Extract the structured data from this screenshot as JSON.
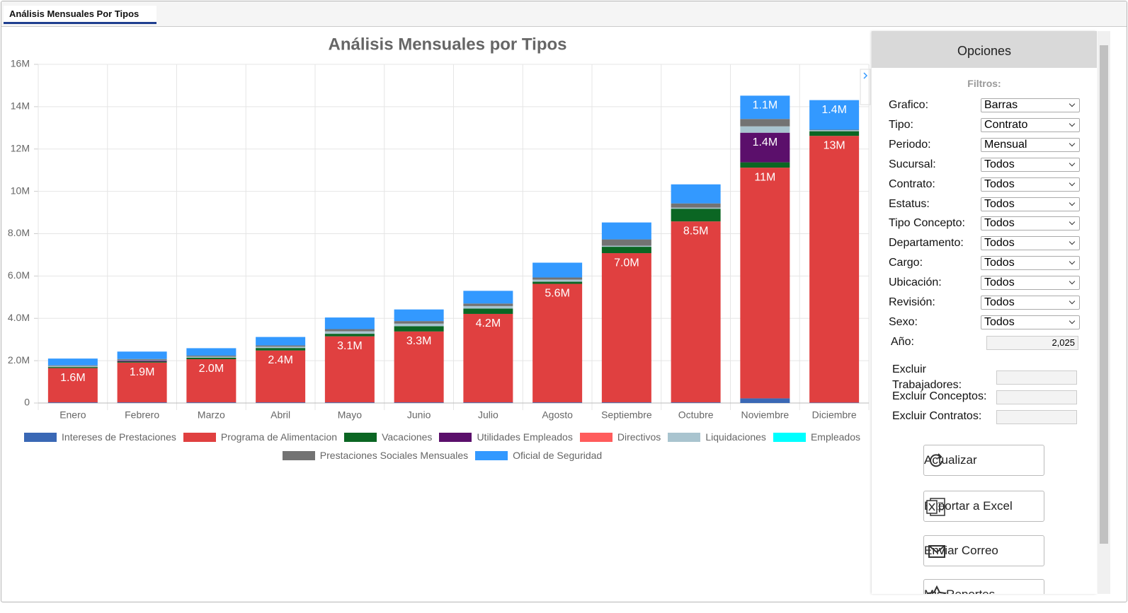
{
  "tab": {
    "label": "Análisis Mensuales Por Tipos"
  },
  "chart_data": {
    "type": "stacked_bar",
    "title": "Análisis Mensuales por Tipos",
    "categories": [
      "Enero",
      "Febrero",
      "Marzo",
      "Abril",
      "Mayo",
      "Junio",
      "Julio",
      "Agosto",
      "Septiembre",
      "Octubre",
      "Noviembre",
      "Diciembre"
    ],
    "ylim": [
      0,
      16000000
    ],
    "yticks": [
      0,
      {
        "value": 2000000,
        "label": "2.0M"
      },
      {
        "value": 4000000,
        "label": "4.0M"
      },
      {
        "value": 6000000,
        "label": "6.0M"
      },
      {
        "value": 8000000,
        "label": "8.0M"
      },
      {
        "value": 10000000,
        "label": "10M"
      },
      {
        "value": 12000000,
        "label": "12M"
      },
      {
        "value": 14000000,
        "label": "14M"
      },
      {
        "value": 16000000,
        "label": "16M"
      }
    ],
    "grid": true,
    "legend": "bottom",
    "series": [
      {
        "name": "Intereses de Prestaciones",
        "color": "#3a68b5",
        "values": [
          30000,
          30000,
          30000,
          30000,
          30000,
          30000,
          30000,
          30000,
          30000,
          30000,
          220000,
          20000
        ]
      },
      {
        "name": "Programa de Alimentacion",
        "color": "#e04040",
        "values": [
          1620000,
          1880000,
          2040000,
          2450000,
          3120000,
          3350000,
          4180000,
          5600000,
          7050000,
          8550000,
          10900000,
          12600000
        ],
        "value_labels": [
          "1.6M",
          "1.9M",
          "2.0M",
          "2.4M",
          "3.1M",
          "3.3M",
          "4.2M",
          "5.6M",
          "7.0M",
          "8.5M",
          "11M",
          "13M"
        ]
      },
      {
        "name": "Vacaciones",
        "color": "#0b6623",
        "values": [
          50000,
          50000,
          70000,
          120000,
          120000,
          250000,
          250000,
          100000,
          300000,
          600000,
          250000,
          220000
        ]
      },
      {
        "name": "Utilidades Empleados",
        "color": "#5b0f6b",
        "values": [
          0,
          50000,
          0,
          0,
          0,
          0,
          0,
          0,
          0,
          0,
          1400000,
          0
        ],
        "value_labels": [
          null,
          null,
          null,
          null,
          null,
          null,
          null,
          null,
          null,
          null,
          "1.4M",
          null
        ]
      },
      {
        "name": "Directivos",
        "color": "#ff5c5c",
        "values": [
          0,
          0,
          0,
          0,
          0,
          0,
          0,
          0,
          0,
          0,
          0,
          0
        ]
      },
      {
        "name": "Liquidaciones",
        "color": "#a9c4cf",
        "values": [
          50000,
          20000,
          50000,
          60000,
          120000,
          120000,
          120000,
          100000,
          50000,
          50000,
          300000,
          50000
        ]
      },
      {
        "name": "Empleados",
        "color": "#00ffff",
        "values": [
          0,
          0,
          0,
          0,
          0,
          0,
          0,
          0,
          0,
          0,
          0,
          0
        ]
      },
      {
        "name": "Prestaciones Sociales Mensuales",
        "color": "#737373",
        "values": [
          30000,
          50000,
          50000,
          60000,
          100000,
          120000,
          120000,
          100000,
          300000,
          200000,
          350000,
          20000
        ]
      },
      {
        "name": "Oficial de Seguridad",
        "color": "#3399ff",
        "values": [
          320000,
          350000,
          350000,
          400000,
          550000,
          550000,
          600000,
          700000,
          800000,
          900000,
          1100000,
          1400000
        ],
        "value_labels": [
          null,
          null,
          null,
          null,
          null,
          null,
          null,
          null,
          null,
          null,
          "1.1M",
          "1.4M"
        ]
      }
    ]
  },
  "panel": {
    "title": "Opciones",
    "filters_heading": "Filtros:",
    "filters": [
      {
        "label": "Grafico:",
        "value": "Barras"
      },
      {
        "label": "Tipo:",
        "value": "Contrato"
      },
      {
        "label": "Periodo:",
        "value": "Mensual"
      },
      {
        "label": "Sucursal:",
        "value": "Todos"
      },
      {
        "label": "Contrato:",
        "value": "Todos"
      },
      {
        "label": "Estatus:",
        "value": "Todos"
      },
      {
        "label": "Tipo Concepto:",
        "value": "Todos"
      },
      {
        "label": "Departamento:",
        "value": "Todos"
      },
      {
        "label": "Cargo:",
        "value": "Todos"
      },
      {
        "label": "Ubicación:",
        "value": "Todos"
      },
      {
        "label": "Revisión:",
        "value": "Todos"
      },
      {
        "label": "Sexo:",
        "value": "Todos"
      }
    ],
    "year": {
      "label": "Año:",
      "value": "2,025"
    },
    "excludes": [
      "Excluir Trabajadores:",
      "Excluir Conceptos:",
      "Excluir Contratos:"
    ],
    "buttons": [
      "Actualizar",
      "Exportar a Excel",
      "Enviar Correo",
      "Mis Reportes"
    ]
  }
}
